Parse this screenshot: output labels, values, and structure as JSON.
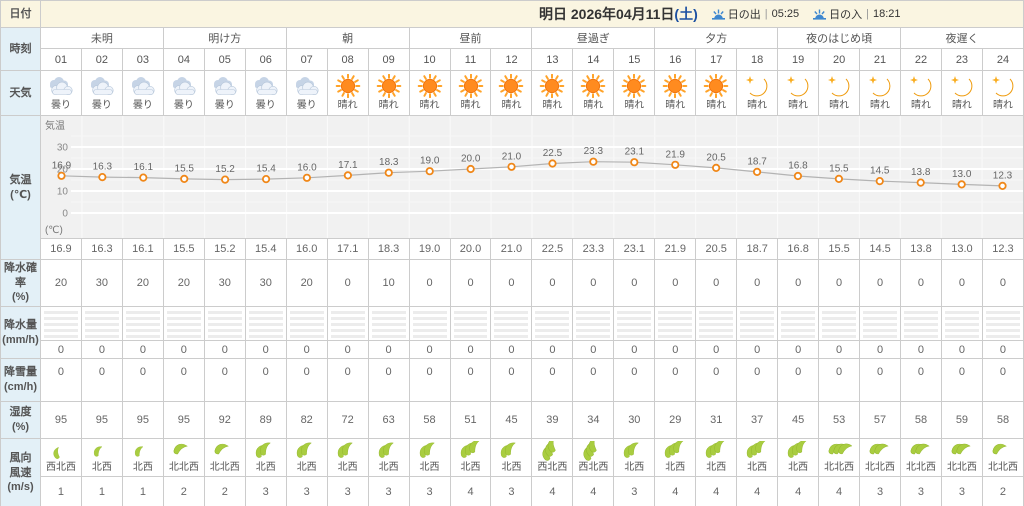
{
  "colors": {
    "header_bg": "#faf5e1",
    "label_column_bg": "#e3f0f7",
    "saturday_blue": "#1c50a2",
    "marker_orange": "#f08718",
    "sun_orange": "#ff8b1f",
    "moon_yellow": "#fcb632",
    "wind_green": "#a9cd40",
    "border": "#cccccc"
  },
  "header": {
    "row_label": "日付",
    "date_prefix": "明日 2026年04月11日",
    "date_day": "(土)",
    "sunrise_label": "日の出",
    "sunrise_time": "05:25",
    "sunset_label": "日の入",
    "sunset_time": "18:21",
    "separator": "|"
  },
  "time": {
    "row_label": "時刻",
    "periods": [
      {
        "label": "未明",
        "span": 3
      },
      {
        "label": "明け方",
        "span": 3
      },
      {
        "label": "朝",
        "span": 3
      },
      {
        "label": "昼前",
        "span": 3
      },
      {
        "label": "昼過ぎ",
        "span": 3
      },
      {
        "label": "夕方",
        "span": 3
      },
      {
        "label": "夜のはじめ頃",
        "span": 3
      },
      {
        "label": "夜遅く",
        "span": 3
      }
    ],
    "hours": [
      "01",
      "02",
      "03",
      "04",
      "05",
      "06",
      "07",
      "08",
      "09",
      "10",
      "11",
      "12",
      "13",
      "14",
      "15",
      "16",
      "17",
      "18",
      "19",
      "20",
      "21",
      "22",
      "23",
      "24"
    ]
  },
  "weather": {
    "row_label": "天気",
    "items": [
      {
        "icon": "cloud",
        "label": "曇り"
      },
      {
        "icon": "cloud",
        "label": "曇り"
      },
      {
        "icon": "cloud",
        "label": "曇り"
      },
      {
        "icon": "cloud",
        "label": "曇り"
      },
      {
        "icon": "cloud",
        "label": "曇り"
      },
      {
        "icon": "cloud",
        "label": "曇り"
      },
      {
        "icon": "cloud",
        "label": "曇り"
      },
      {
        "icon": "sun",
        "label": "晴れ"
      },
      {
        "icon": "sun",
        "label": "晴れ"
      },
      {
        "icon": "sun",
        "label": "晴れ"
      },
      {
        "icon": "sun",
        "label": "晴れ"
      },
      {
        "icon": "sun",
        "label": "晴れ"
      },
      {
        "icon": "sun",
        "label": "晴れ"
      },
      {
        "icon": "sun",
        "label": "晴れ"
      },
      {
        "icon": "sun",
        "label": "晴れ"
      },
      {
        "icon": "sun",
        "label": "晴れ"
      },
      {
        "icon": "sun",
        "label": "晴れ"
      },
      {
        "icon": "moon",
        "label": "晴れ"
      },
      {
        "icon": "moon",
        "label": "晴れ"
      },
      {
        "icon": "moon",
        "label": "晴れ"
      },
      {
        "icon": "moon",
        "label": "晴れ"
      },
      {
        "icon": "moon",
        "label": "晴れ"
      },
      {
        "icon": "moon",
        "label": "晴れ"
      },
      {
        "icon": "moon",
        "label": "晴れ"
      }
    ]
  },
  "temperature": {
    "row_label": "気温",
    "row_unit": "(℃)"
  },
  "chart_data": {
    "type": "line",
    "title": "気温",
    "unit_label": "(℃)",
    "x_hours": [
      1,
      2,
      3,
      4,
      5,
      6,
      7,
      8,
      9,
      10,
      11,
      12,
      13,
      14,
      15,
      16,
      17,
      18,
      19,
      20,
      21,
      22,
      23,
      24
    ],
    "values": [
      16.9,
      16.3,
      16.1,
      15.5,
      15.2,
      15.4,
      16.0,
      17.1,
      18.3,
      19.0,
      20.0,
      21.0,
      22.5,
      23.3,
      23.1,
      21.9,
      20.5,
      18.7,
      16.8,
      15.5,
      14.5,
      13.8,
      13.0,
      12.3
    ],
    "y_ticks": [
      0,
      10,
      20,
      30
    ],
    "ylim": [
      0,
      30
    ],
    "grid": true,
    "legend": false
  },
  "precip_probability": {
    "row_label": "降水確率",
    "row_unit": "(%)",
    "values": [
      20,
      30,
      20,
      20,
      30,
      30,
      20,
      0,
      10,
      0,
      0,
      0,
      0,
      0,
      0,
      0,
      0,
      0,
      0,
      0,
      0,
      0,
      0,
      0
    ]
  },
  "precipitation": {
    "row_label": "降水量",
    "row_unit": "(mm/h)",
    "values": [
      0,
      0,
      0,
      0,
      0,
      0,
      0,
      0,
      0,
      0,
      0,
      0,
      0,
      0,
      0,
      0,
      0,
      0,
      0,
      0,
      0,
      0,
      0,
      0
    ]
  },
  "snowfall": {
    "row_label": "降雪量",
    "row_unit": "(cm/h)",
    "values": [
      0,
      0,
      0,
      0,
      0,
      0,
      0,
      0,
      0,
      0,
      0,
      0,
      0,
      0,
      0,
      0,
      0,
      0,
      0,
      0,
      0,
      0,
      0,
      0
    ]
  },
  "humidity": {
    "row_label": "湿度(%)",
    "values": [
      95,
      95,
      95,
      95,
      92,
      89,
      82,
      72,
      63,
      58,
      51,
      45,
      39,
      34,
      30,
      29,
      31,
      37,
      45,
      53,
      57,
      58,
      59,
      58
    ]
  },
  "wind": {
    "row_label_direction": "風向",
    "row_label_speed": "風速",
    "row_label_unit": "(m/s)",
    "directions": [
      "西北西",
      "北西",
      "北西",
      "北北西",
      "北北西",
      "北西",
      "北西",
      "北西",
      "北西",
      "北西",
      "北西",
      "北西",
      "西北西",
      "西北西",
      "北西",
      "北西",
      "北西",
      "北西",
      "北西",
      "北北西",
      "北北西",
      "北北西",
      "北北西",
      "北北西"
    ],
    "speeds": [
      1,
      1,
      1,
      2,
      2,
      3,
      3,
      3,
      3,
      3,
      4,
      3,
      4,
      4,
      3,
      4,
      4,
      4,
      4,
      4,
      3,
      3,
      3,
      2
    ]
  }
}
